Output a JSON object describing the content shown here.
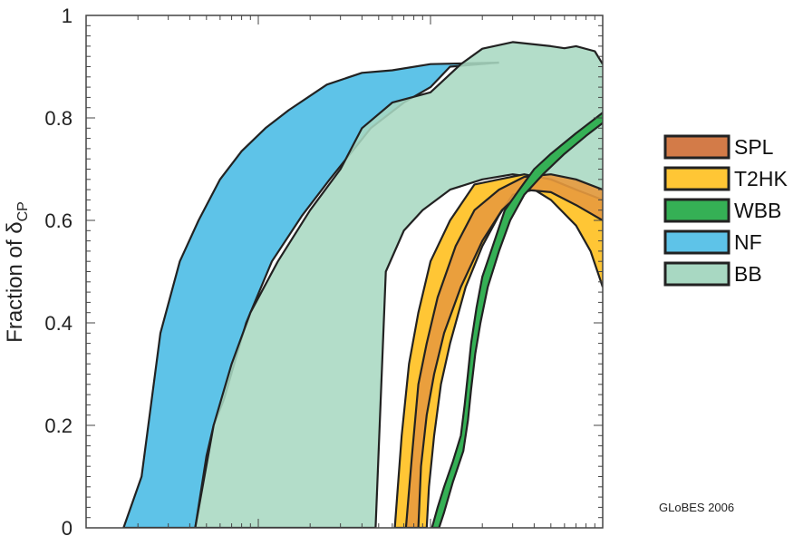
{
  "chart_data": {
    "type": "area",
    "ylabel_main": "Fraction of δ",
    "ylabel_sub": "CP",
    "ylim": [
      0,
      1
    ],
    "y_ticks": [
      0,
      0.2,
      0.4,
      0.6,
      0.8,
      1
    ],
    "y_tick_labels": [
      "0",
      "0.2",
      "0.4",
      "0.6",
      "0.8",
      "1"
    ],
    "x_scale": "log",
    "xlim": [
      0.0001,
      0.1
    ],
    "x_major_ticks": [
      0.001,
      0.01
    ],
    "x_ticks_labeled": false,
    "legend_position": "right",
    "credit": "GLoBES 2006",
    "series": [
      {
        "name": "NF",
        "color": "#5EC3E8",
        "opacity": 1,
        "upper": [
          [
            0.000165,
            0
          ],
          [
            0.00021,
            0.1
          ],
          [
            0.00027,
            0.38
          ],
          [
            0.00035,
            0.52
          ],
          [
            0.00045,
            0.6
          ],
          [
            0.0006,
            0.68
          ],
          [
            0.0008,
            0.735
          ],
          [
            0.0011,
            0.78
          ],
          [
            0.0015,
            0.815
          ],
          [
            0.0025,
            0.865
          ],
          [
            0.004,
            0.888
          ],
          [
            0.006,
            0.893
          ],
          [
            0.01,
            0.905
          ],
          [
            0.025,
            0.908
          ]
        ],
        "lower": [
          [
            0.000165,
            0
          ],
          [
            0.00043,
            0
          ],
          [
            0.0005,
            0.14
          ],
          [
            0.00055,
            0.2
          ],
          [
            0.00063,
            0.25
          ],
          [
            0.00085,
            0.4
          ],
          [
            0.0012,
            0.52
          ],
          [
            0.0018,
            0.61
          ],
          [
            0.0026,
            0.68
          ],
          [
            0.0045,
            0.78
          ],
          [
            0.007,
            0.83
          ],
          [
            0.01,
            0.86
          ],
          [
            0.013,
            0.9
          ],
          [
            0.025,
            0.908
          ]
        ]
      },
      {
        "name": "BB",
        "color": "#A8D8C2",
        "opacity": 0.88,
        "upper": [
          [
            0.00043,
            0
          ],
          [
            0.00055,
            0.2
          ],
          [
            0.0007,
            0.32
          ],
          [
            0.0009,
            0.42
          ],
          [
            0.0013,
            0.52
          ],
          [
            0.002,
            0.62
          ],
          [
            0.003,
            0.7
          ],
          [
            0.004,
            0.78
          ],
          [
            0.006,
            0.83
          ],
          [
            0.01,
            0.85
          ],
          [
            0.015,
            0.905
          ],
          [
            0.02,
            0.935
          ],
          [
            0.03,
            0.948
          ],
          [
            0.05,
            0.94
          ],
          [
            0.06,
            0.936
          ],
          [
            0.07,
            0.94
          ],
          [
            0.09,
            0.93
          ],
          [
            0.1,
            0.905
          ]
        ],
        "lower": [
          [
            0.00043,
            0
          ],
          [
            0.0048,
            0
          ],
          [
            0.0055,
            0.5
          ],
          [
            0.007,
            0.58
          ],
          [
            0.009,
            0.62
          ],
          [
            0.013,
            0.66
          ],
          [
            0.02,
            0.68
          ],
          [
            0.03,
            0.69
          ],
          [
            0.05,
            0.68
          ],
          [
            0.07,
            0.66
          ],
          [
            0.1,
            0.62
          ]
        ]
      },
      {
        "name": "T2HK",
        "color": "#FFC635",
        "opacity": 1,
        "upper": [
          [
            0.0062,
            0
          ],
          [
            0.0068,
            0.18
          ],
          [
            0.0075,
            0.32
          ],
          [
            0.0085,
            0.42
          ],
          [
            0.01,
            0.52
          ],
          [
            0.013,
            0.6
          ],
          [
            0.018,
            0.67
          ],
          [
            0.025,
            0.68
          ],
          [
            0.035,
            0.69
          ],
          [
            0.05,
            0.68
          ],
          [
            0.07,
            0.66
          ],
          [
            0.1,
            0.64
          ]
        ],
        "lower": [
          [
            0.0062,
            0
          ],
          [
            0.0095,
            0
          ],
          [
            0.0098,
            0.08
          ],
          [
            0.0105,
            0.18
          ],
          [
            0.0115,
            0.28
          ],
          [
            0.013,
            0.36
          ],
          [
            0.016,
            0.47
          ],
          [
            0.02,
            0.55
          ],
          [
            0.025,
            0.61
          ],
          [
            0.03,
            0.65
          ],
          [
            0.04,
            0.66
          ],
          [
            0.05,
            0.64
          ],
          [
            0.07,
            0.59
          ],
          [
            0.085,
            0.54
          ],
          [
            0.1,
            0.47
          ]
        ]
      },
      {
        "name": "SPL",
        "color": "#E89A3E",
        "opacity": 0.9,
        "upper": [
          [
            0.0072,
            0
          ],
          [
            0.0078,
            0.14
          ],
          [
            0.0085,
            0.28
          ],
          [
            0.0095,
            0.36
          ],
          [
            0.011,
            0.45
          ],
          [
            0.014,
            0.55
          ],
          [
            0.018,
            0.62
          ],
          [
            0.025,
            0.66
          ],
          [
            0.035,
            0.685
          ],
          [
            0.05,
            0.69
          ],
          [
            0.07,
            0.68
          ],
          [
            0.1,
            0.66
          ]
        ],
        "lower": [
          [
            0.0072,
            0
          ],
          [
            0.0085,
            0
          ],
          [
            0.0088,
            0.12
          ],
          [
            0.0095,
            0.22
          ],
          [
            0.0105,
            0.3
          ],
          [
            0.012,
            0.38
          ],
          [
            0.015,
            0.47
          ],
          [
            0.02,
            0.56
          ],
          [
            0.026,
            0.62
          ],
          [
            0.035,
            0.66
          ],
          [
            0.05,
            0.655
          ],
          [
            0.07,
            0.63
          ],
          [
            0.1,
            0.6
          ]
        ]
      },
      {
        "name": "WBB",
        "color": "#35B055",
        "opacity": 1,
        "upper": [
          [
            0.0102,
            0
          ],
          [
            0.011,
            0.04
          ],
          [
            0.012,
            0.08
          ],
          [
            0.0135,
            0.13
          ],
          [
            0.015,
            0.18
          ],
          [
            0.0158,
            0.24
          ],
          [
            0.0165,
            0.3
          ],
          [
            0.0172,
            0.36
          ],
          [
            0.0185,
            0.43
          ],
          [
            0.02,
            0.49
          ],
          [
            0.023,
            0.55
          ],
          [
            0.027,
            0.62
          ],
          [
            0.032,
            0.655
          ],
          [
            0.04,
            0.7
          ],
          [
            0.05,
            0.73
          ],
          [
            0.07,
            0.77
          ],
          [
            0.1,
            0.81
          ]
        ],
        "lower": [
          [
            0.0102,
            0
          ],
          [
            0.0112,
            0
          ],
          [
            0.012,
            0.03
          ],
          [
            0.0135,
            0.09
          ],
          [
            0.0155,
            0.15
          ],
          [
            0.0165,
            0.21
          ],
          [
            0.0172,
            0.27
          ],
          [
            0.0182,
            0.34
          ],
          [
            0.0195,
            0.4
          ],
          [
            0.0215,
            0.47
          ],
          [
            0.025,
            0.54
          ],
          [
            0.029,
            0.6
          ],
          [
            0.035,
            0.65
          ],
          [
            0.045,
            0.69
          ],
          [
            0.06,
            0.73
          ],
          [
            0.08,
            0.765
          ],
          [
            0.1,
            0.79
          ]
        ]
      }
    ]
  },
  "legend": {
    "items": [
      {
        "label": "SPL",
        "color": "#D37B48"
      },
      {
        "label": "T2HK",
        "color": "#FFC635"
      },
      {
        "label": "WBB",
        "color": "#35B055"
      },
      {
        "label": "NF",
        "color": "#5EC3E8"
      },
      {
        "label": "BB",
        "color": "#A8D8C2"
      }
    ]
  }
}
